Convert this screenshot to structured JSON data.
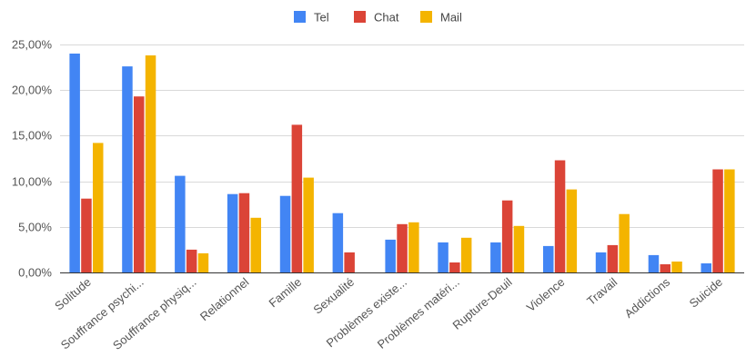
{
  "chart_data": {
    "type": "bar",
    "categories": [
      "Solitude",
      "Souffrance psychi...",
      "Souffrance physiq...",
      "Relationnel",
      "Famille",
      "Sexualité",
      "Problèmes existe...",
      "Problèmes matéri...",
      "Rupture-Deuil",
      "Violence",
      "Travail",
      "Addictions",
      "Suicide"
    ],
    "series": [
      {
        "name": "Tel",
        "color": "#4285f4",
        "values": [
          24.0,
          22.6,
          10.6,
          8.6,
          8.4,
          6.5,
          3.6,
          3.3,
          3.3,
          2.9,
          2.2,
          1.9,
          1.0
        ]
      },
      {
        "name": "Chat",
        "color": "#db4437",
        "values": [
          8.1,
          19.3,
          2.5,
          8.7,
          16.2,
          2.2,
          5.3,
          1.1,
          7.9,
          12.3,
          3.0,
          0.9,
          11.3
        ]
      },
      {
        "name": "Mail",
        "color": "#f4b400",
        "values": [
          14.2,
          23.8,
          2.1,
          6.0,
          10.4,
          0.0,
          5.5,
          3.8,
          5.1,
          9.1,
          6.4,
          1.2,
          11.3
        ]
      }
    ],
    "ylim": [
      0,
      25
    ],
    "yticks": [
      0,
      5,
      10,
      15,
      20,
      25
    ],
    "ytick_labels": [
      "0,00%",
      "5,00%",
      "10,00%",
      "15,00%",
      "20,00%",
      "25,00%"
    ],
    "grid": true,
    "legend_position": "top-center"
  }
}
